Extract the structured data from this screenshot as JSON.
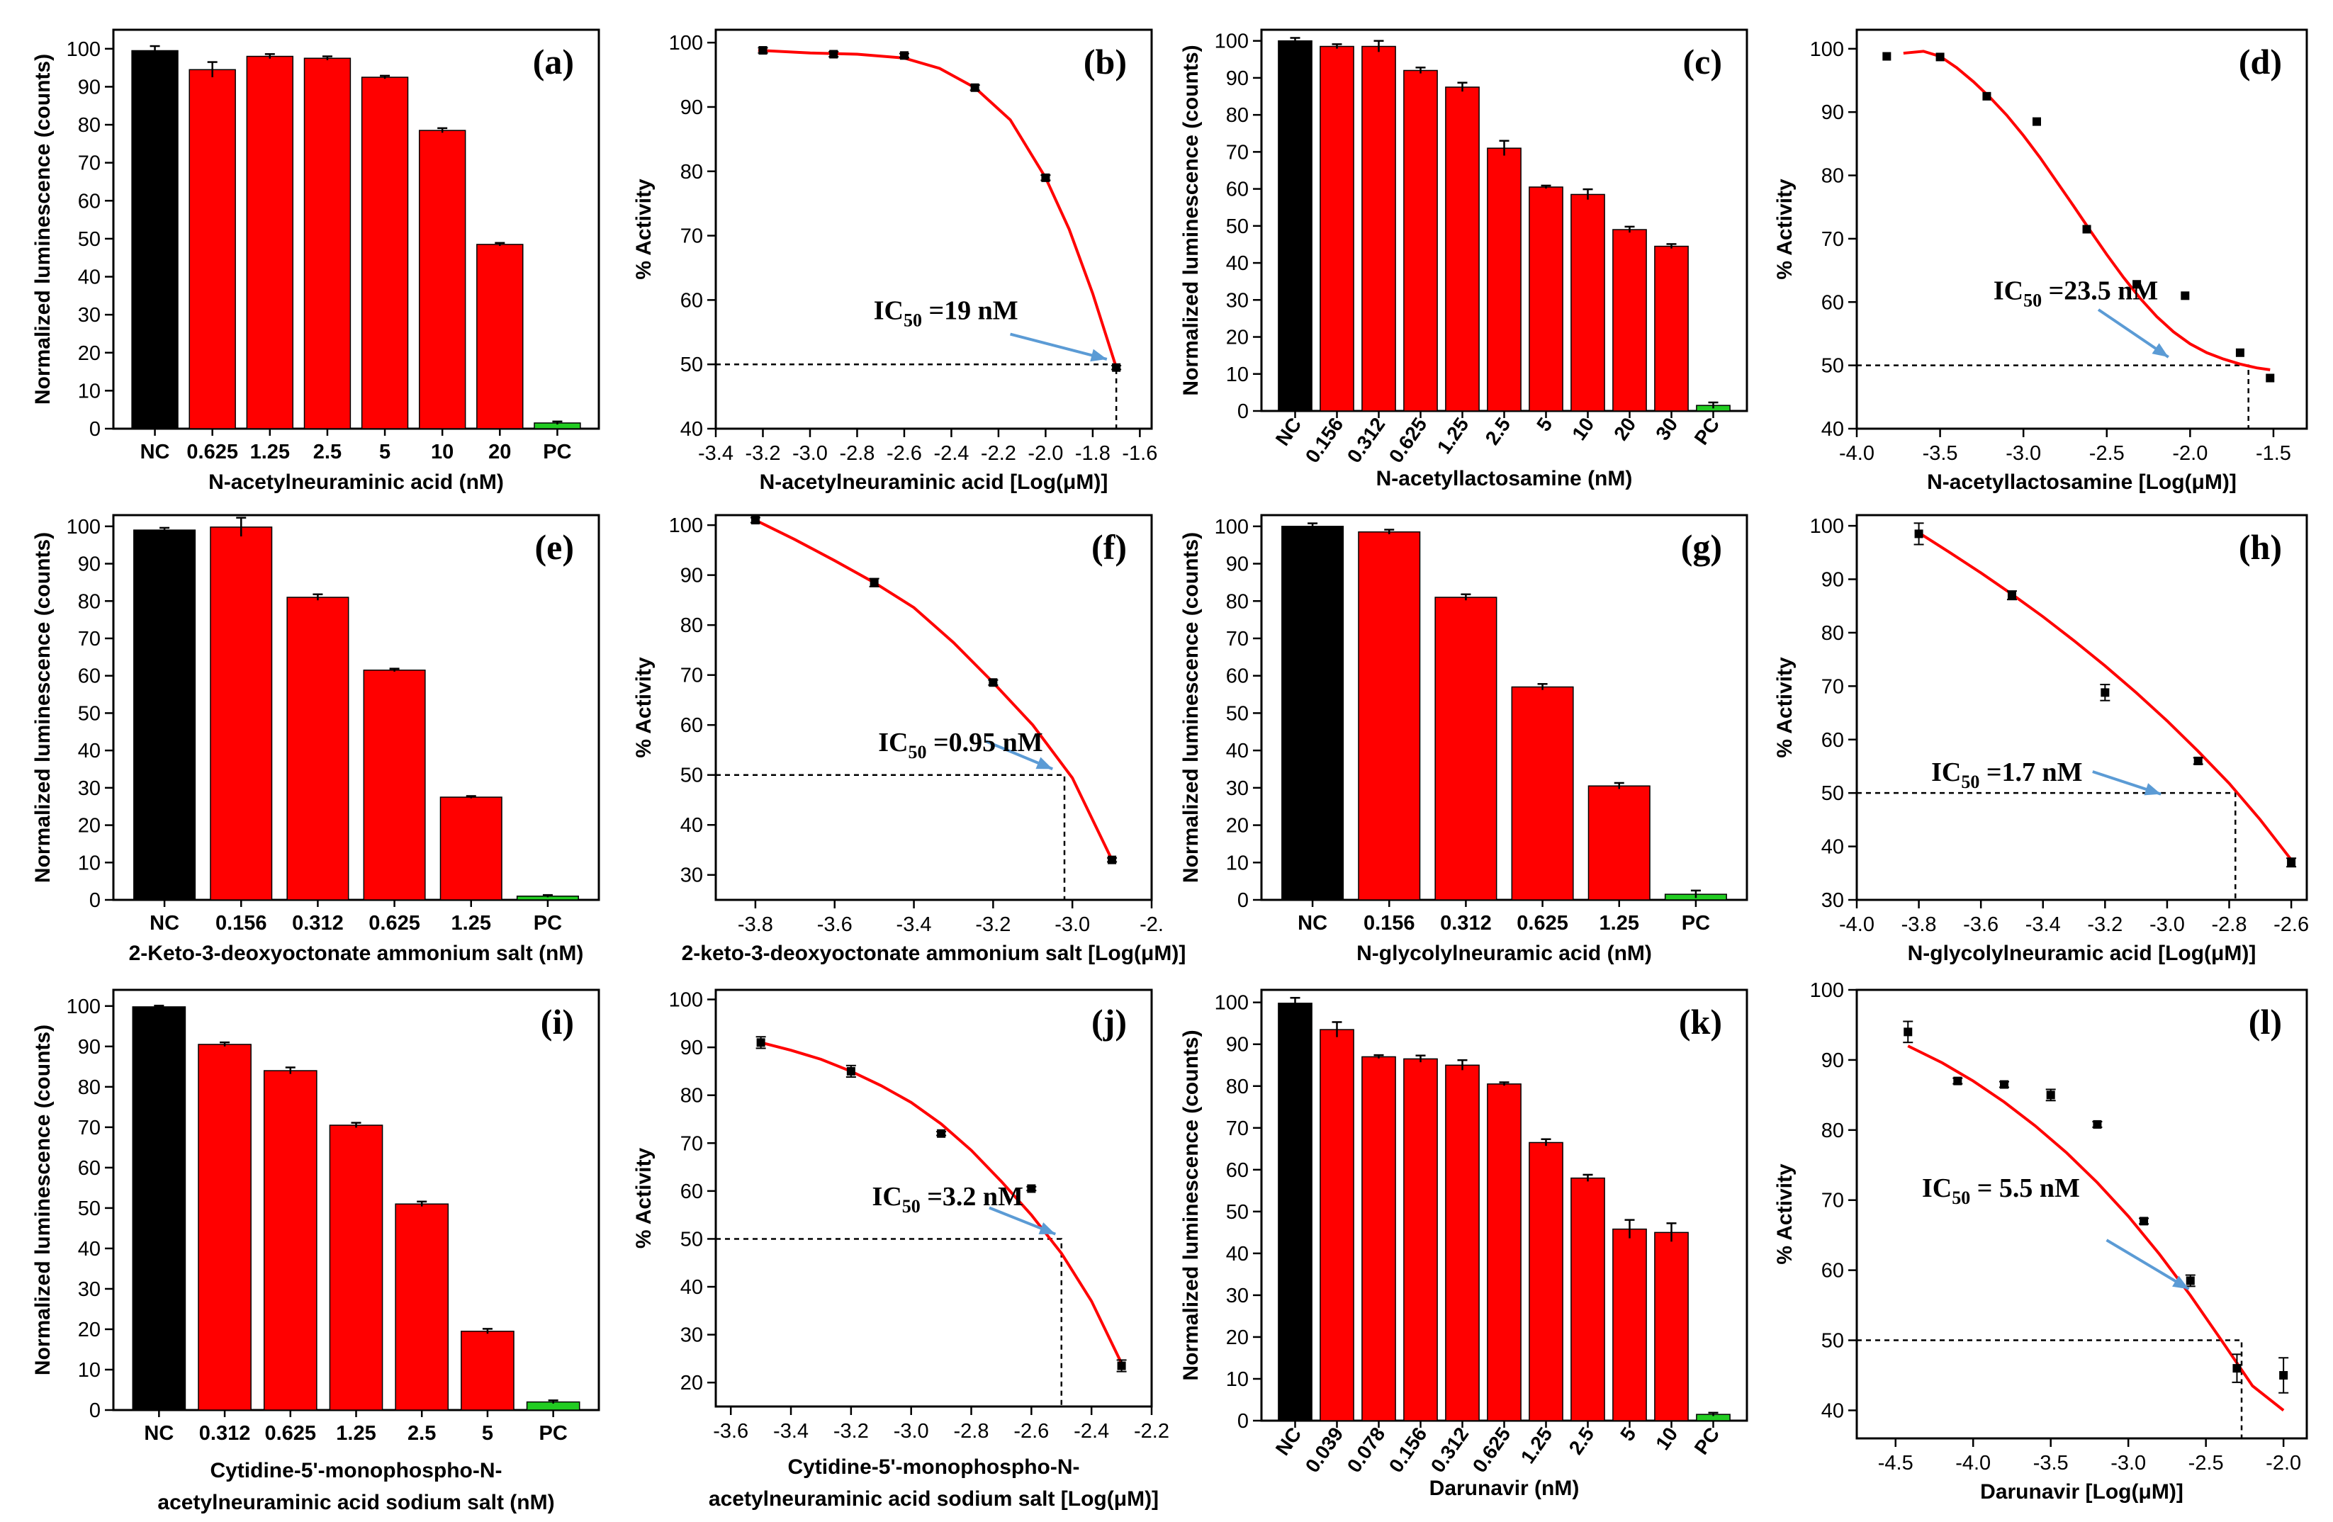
{
  "chart_data": [
    {
      "id": "a",
      "type": "bar",
      "panel_label": "(a)",
      "xlabel": "N-acetylneuraminic acid (nM)",
      "ylabel": "Normalized luminescence (counts)",
      "ylim": [
        0,
        105
      ],
      "yticks": [
        0,
        10,
        20,
        30,
        40,
        50,
        60,
        70,
        80,
        90,
        100
      ],
      "categories": [
        "NC",
        "0.625",
        "1.25",
        "2.5",
        "5",
        "10",
        "20",
        "PC"
      ],
      "values": [
        99.5,
        94.5,
        98,
        97.5,
        92.5,
        78.5,
        48.5,
        1.5
      ],
      "errors": [
        1.2,
        2.0,
        0.6,
        0.5,
        0.4,
        0.6,
        0.4,
        0.4
      ],
      "colors": [
        "#000000",
        "#ff0000",
        "#ff0000",
        "#ff0000",
        "#ff0000",
        "#ff0000",
        "#ff0000",
        "#22cc22"
      ],
      "rotate_ticks": false
    },
    {
      "id": "b",
      "type": "scatter",
      "panel_label": "(b)",
      "xlabel": "N-acetylneuraminic acid [Log(μM)]",
      "ylabel": "% Activity",
      "xlim": [
        -3.4,
        -1.55
      ],
      "ylim": [
        40,
        102
      ],
      "xticks": [
        -3.4,
        -3.2,
        -3.0,
        -2.8,
        -2.6,
        -2.4,
        -2.2,
        -2.0,
        -1.8,
        -1.6
      ],
      "xtick_labels": [
        "-3.4",
        "-3.2",
        "-3.0",
        "-2.8",
        "-2.6",
        "-2.4",
        "-2.2",
        "-2.0",
        "-1.8",
        "-1.6"
      ],
      "yticks": [
        40,
        50,
        60,
        70,
        80,
        90,
        100
      ],
      "points": {
        "x": [
          -3.2,
          -2.9,
          -2.6,
          -2.3,
          -2.0,
          -1.7
        ],
        "y": [
          98.8,
          98.2,
          98,
          93,
          79,
          49.5
        ],
        "err": [
          0.4,
          0.4,
          0.3,
          0.4,
          0.4,
          0.3
        ]
      },
      "fit": {
        "x": [
          -3.22,
          -3.0,
          -2.8,
          -2.6,
          -2.45,
          -2.3,
          -2.15,
          -2.0,
          -1.9,
          -1.8,
          -1.7
        ],
        "y": [
          98.8,
          98.4,
          98.2,
          97.6,
          96,
          93,
          88,
          79,
          71,
          61,
          49.5
        ]
      },
      "ic50": {
        "x": -1.7,
        "y": 50,
        "label_prefix": "IC",
        "label_sub": "50",
        "label_suffix": " =19 nM",
        "label_at": [
          -2.73,
          57
        ],
        "arrow_from": [
          -2.15,
          54.7
        ],
        "arrow_to": [
          -1.74,
          50.8
        ]
      }
    },
    {
      "id": "c",
      "type": "bar",
      "panel_label": "(c)",
      "xlabel": "N-acetyllactosamine (nM)",
      "ylabel": "Normalized luminescence (counts)",
      "ylim": [
        0,
        103
      ],
      "yticks": [
        0,
        10,
        20,
        30,
        40,
        50,
        60,
        70,
        80,
        90,
        100
      ],
      "categories": [
        "NC",
        "0.156",
        "0.312",
        "0.625",
        "1.25",
        "2.5",
        "5",
        "10",
        "20",
        "30",
        "PC"
      ],
      "values": [
        100,
        98.5,
        98.5,
        92,
        87.5,
        71,
        60.5,
        58.5,
        49,
        44.5,
        1.5
      ],
      "errors": [
        0.8,
        0.6,
        1.5,
        0.8,
        1.2,
        2.0,
        0.4,
        1.4,
        0.8,
        0.6,
        0.8
      ],
      "colors": [
        "#000000",
        "#ff0000",
        "#ff0000",
        "#ff0000",
        "#ff0000",
        "#ff0000",
        "#ff0000",
        "#ff0000",
        "#ff0000",
        "#ff0000",
        "#22cc22"
      ],
      "rotate_ticks": true
    },
    {
      "id": "d",
      "type": "scatter",
      "panel_label": "(d)",
      "xlabel": "N-acetyllactosamine [Log(μM)]",
      "ylabel": "% Activity",
      "xlim": [
        -4.0,
        -1.3
      ],
      "ylim": [
        40,
        103
      ],
      "xticks": [
        -4.0,
        -3.5,
        -3.0,
        -2.5,
        -2.0,
        -1.5
      ],
      "xtick_labels": [
        "-4.0",
        "-3.5",
        "-3.0",
        "-2.5",
        "-2.0",
        "-1.5"
      ],
      "yticks": [
        40,
        50,
        60,
        70,
        80,
        90,
        100
      ],
      "points": {
        "x": [
          -3.82,
          -3.5,
          -3.22,
          -2.92,
          -2.62,
          -2.32,
          -2.03,
          -1.7,
          -1.52
        ],
        "y": [
          98.8,
          98.7,
          92.5,
          88.5,
          71.5,
          62.8,
          61,
          52,
          48
        ],
        "err": [
          0,
          0,
          0,
          0,
          0,
          0,
          0,
          0,
          0
        ]
      },
      "fit": {
        "x": [
          -3.72,
          -3.6,
          -3.5,
          -3.4,
          -3.3,
          -3.2,
          -3.1,
          -3.0,
          -2.9,
          -2.8,
          -2.7,
          -2.6,
          -2.5,
          -2.4,
          -2.3,
          -2.2,
          -2.1,
          -2.0,
          -1.9,
          -1.8,
          -1.7,
          -1.6,
          -1.52
        ],
        "y": [
          99.3,
          99.6,
          98.8,
          97,
          94.8,
          92.3,
          89.5,
          86.3,
          82.8,
          79,
          75.2,
          71.3,
          67.5,
          63.9,
          60.6,
          57.7,
          55.3,
          53.4,
          52,
          51,
          50.2,
          49.6,
          49.3
        ]
      },
      "ic50": {
        "x": -1.65,
        "y": 50,
        "label_prefix": "IC",
        "label_sub": "50",
        "label_suffix": " =23.5 nM",
        "label_at": [
          -3.18,
          60.4
        ],
        "arrow_from": [
          -2.55,
          58.8
        ],
        "arrow_to": [
          -2.13,
          51.3
        ]
      }
    },
    {
      "id": "e",
      "type": "bar",
      "panel_label": "(e)",
      "xlabel": "2-Keto-3-deoxyoctonate ammonium salt (nM)",
      "ylabel": "Normalized luminescence (counts)",
      "ylim": [
        0,
        103
      ],
      "yticks": [
        0,
        10,
        20,
        30,
        40,
        50,
        60,
        70,
        80,
        90,
        100
      ],
      "categories": [
        "NC",
        "0.156",
        "0.312",
        "0.625",
        "1.25",
        "PC"
      ],
      "values": [
        99,
        99.8,
        81,
        61.5,
        27.5,
        1
      ],
      "errors": [
        0.6,
        2.5,
        0.8,
        0.4,
        0.3,
        0.3
      ],
      "colors": [
        "#000000",
        "#ff0000",
        "#ff0000",
        "#ff0000",
        "#ff0000",
        "#22cc22"
      ],
      "rotate_ticks": false
    },
    {
      "id": "f",
      "type": "scatter",
      "panel_label": "(f)",
      "xlabel": "2-keto-3-deoxyoctonate ammonium salt [Log(μM)]",
      "ylabel": "% Activity",
      "xlim": [
        -3.9,
        -2.8
      ],
      "ylim": [
        25,
        102
      ],
      "xticks": [
        -3.8,
        -3.6,
        -3.4,
        -3.2,
        -3.0,
        -2.8
      ],
      "xtick_labels": [
        "-3.8",
        "-3.6",
        "-3.4",
        "-3.2",
        "-3.0",
        "-2."
      ],
      "yticks": [
        30,
        40,
        50,
        60,
        70,
        80,
        90,
        100
      ],
      "points": {
        "x": [
          -3.8,
          -3.5,
          -3.2,
          -2.9
        ],
        "y": [
          101,
          88.5,
          68.5,
          33
        ],
        "err": [
          0.5,
          0.8,
          0.5,
          0.4
        ]
      },
      "fit": {
        "x": [
          -3.8,
          -3.7,
          -3.6,
          -3.5,
          -3.4,
          -3.3,
          -3.2,
          -3.1,
          -3.0,
          -2.9
        ],
        "y": [
          101,
          97.1,
          92.9,
          88.5,
          83.5,
          76.5,
          68.5,
          60,
          49.4,
          33
        ]
      },
      "ic50": {
        "x": -3.02,
        "y": 50,
        "label_prefix": "IC",
        "label_sub": "50",
        "label_suffix": " =0.95 nM",
        "label_at": [
          -3.49,
          54.8
        ],
        "arrow_from": [
          -3.22,
          56.8
        ],
        "arrow_to": [
          -3.05,
          51.2
        ]
      }
    },
    {
      "id": "g",
      "type": "bar",
      "panel_label": "(g)",
      "xlabel": "N-glycolylneuramic acid (nM)",
      "ylabel": "Normalized luminescence (counts)",
      "ylim": [
        0,
        103
      ],
      "yticks": [
        0,
        10,
        20,
        30,
        40,
        50,
        60,
        70,
        80,
        90,
        100
      ],
      "categories": [
        "NC",
        "0.156",
        "0.312",
        "0.625",
        "1.25",
        "PC"
      ],
      "values": [
        100,
        98.5,
        81,
        57,
        30.5,
        1.5
      ],
      "errors": [
        0.8,
        0.6,
        0.8,
        0.8,
        0.8,
        1.0
      ],
      "colors": [
        "#000000",
        "#ff0000",
        "#ff0000",
        "#ff0000",
        "#ff0000",
        "#22cc22"
      ],
      "rotate_ticks": false
    },
    {
      "id": "h",
      "type": "scatter",
      "panel_label": "(h)",
      "xlabel": "N-glycolylneuramic acid [Log(μM)]",
      "ylabel": "% Activity",
      "xlim": [
        -4.0,
        -2.55
      ],
      "ylim": [
        30,
        102
      ],
      "xticks": [
        -4.0,
        -3.8,
        -3.6,
        -3.4,
        -3.2,
        -3.0,
        -2.8,
        -2.6
      ],
      "xtick_labels": [
        "-4.0",
        "-3.8",
        "-3.6",
        "-3.4",
        "-3.2",
        "-3.0",
        "-2.8",
        "-2.6"
      ],
      "yticks": [
        30,
        40,
        50,
        60,
        70,
        80,
        90,
        100
      ],
      "points": {
        "x": [
          -3.8,
          -3.5,
          -3.2,
          -2.9,
          -2.6
        ],
        "y": [
          98.5,
          87,
          68.8,
          56,
          37
        ],
        "err": [
          2.0,
          0.8,
          1.5,
          0.6,
          0.8
        ]
      },
      "fit": {
        "x": [
          -3.8,
          -3.7,
          -3.6,
          -3.5,
          -3.4,
          -3.3,
          -3.2,
          -3.1,
          -3.0,
          -2.9,
          -2.8,
          -2.7,
          -2.6
        ],
        "y": [
          98.7,
          95,
          91.2,
          87.2,
          83,
          78.5,
          73.8,
          68.8,
          63.5,
          57.8,
          51.8,
          45,
          37.5
        ]
      },
      "ic50": {
        "x": -2.78,
        "y": 50,
        "label_prefix": "IC",
        "label_sub": "50",
        "label_suffix": " =1.7 nM",
        "label_at": [
          -3.76,
          52.3
        ],
        "arrow_from": [
          -3.24,
          54
        ],
        "arrow_to": [
          -3.02,
          49.8
        ]
      }
    },
    {
      "id": "i",
      "type": "bar",
      "panel_label": "(i)",
      "xlabel": "Cytidine-5'-monophospho-N-",
      "xlabel2": "acetylneuraminic acid sodium salt (nM)",
      "ylabel": "Normalized luminescence (counts)",
      "ylim": [
        0,
        104
      ],
      "yticks": [
        0,
        10,
        20,
        30,
        40,
        50,
        60,
        70,
        80,
        90,
        100
      ],
      "categories": [
        "NC",
        "0.312",
        "0.625",
        "1.25",
        "2.5",
        "5",
        "PC"
      ],
      "values": [
        99.8,
        90.5,
        84,
        70.5,
        51,
        19.5,
        2
      ],
      "errors": [
        0.3,
        0.5,
        0.8,
        0.6,
        0.6,
        0.6,
        0.4
      ],
      "colors": [
        "#000000",
        "#ff0000",
        "#ff0000",
        "#ff0000",
        "#ff0000",
        "#ff0000",
        "#22cc22"
      ],
      "rotate_ticks": false
    },
    {
      "id": "j",
      "type": "scatter",
      "panel_label": "(j)",
      "xlabel": "Cytidine-5'-monophospho-N-",
      "xlabel2": "acetylneuraminic acid sodium salt [Log(μM)]",
      "ylabel": "% Activity",
      "xlim": [
        -3.65,
        -2.2
      ],
      "ylim": [
        15,
        102
      ],
      "xticks": [
        -3.6,
        -3.4,
        -3.2,
        -3.0,
        -2.8,
        -2.6,
        -2.4,
        -2.2
      ],
      "xtick_labels": [
        "-3.6",
        "-3.4",
        "-3.2",
        "-3.0",
        "-2.8",
        "-2.6",
        "-2.4",
        "-2.2"
      ],
      "yticks": [
        20,
        30,
        40,
        50,
        60,
        70,
        80,
        90,
        100
      ],
      "points": {
        "x": [
          -3.5,
          -3.2,
          -2.9,
          -2.6,
          -2.3
        ],
        "y": [
          91,
          85,
          72,
          60.5,
          23.5
        ],
        "err": [
          1.2,
          1.2,
          0.4,
          0.4,
          1.2
        ]
      },
      "fit": {
        "x": [
          -3.5,
          -3.4,
          -3.3,
          -3.2,
          -3.1,
          -3.0,
          -2.9,
          -2.8,
          -2.7,
          -2.6,
          -2.5,
          -2.4,
          -2.3
        ],
        "y": [
          91,
          89.4,
          87.5,
          85,
          82,
          78.5,
          74,
          68.5,
          62,
          55,
          47,
          37,
          24
        ]
      },
      "ic50": {
        "x": -2.5,
        "y": 50,
        "label_prefix": "IC",
        "label_sub": "50",
        "label_suffix": " =3.2 nM",
        "label_at": [
          -3.13,
          57
        ],
        "arrow_from": [
          -2.74,
          56.5
        ],
        "arrow_to": [
          -2.52,
          51
        ]
      }
    },
    {
      "id": "k",
      "type": "bar",
      "panel_label": "(k)",
      "xlabel": "Darunavir (nM)",
      "ylabel": "Normalized luminescence (counts)",
      "ylim": [
        0,
        103
      ],
      "yticks": [
        0,
        10,
        20,
        30,
        40,
        50,
        60,
        70,
        80,
        90,
        100
      ],
      "categories": [
        "NC",
        "0.039",
        "0.078",
        "0.156",
        "0.312",
        "0.625",
        "1.25",
        "2.5",
        "5",
        "10",
        "PC"
      ],
      "values": [
        99.8,
        93.5,
        87,
        86.5,
        85,
        80.5,
        66.5,
        58,
        45.8,
        45,
        1.5
      ],
      "errors": [
        1.3,
        1.8,
        0.4,
        0.8,
        1.2,
        0.4,
        0.8,
        0.8,
        2.2,
        2.2,
        0.4
      ],
      "colors": [
        "#000000",
        "#ff0000",
        "#ff0000",
        "#ff0000",
        "#ff0000",
        "#ff0000",
        "#ff0000",
        "#ff0000",
        "#ff0000",
        "#ff0000",
        "#22cc22"
      ],
      "rotate_ticks": true
    },
    {
      "id": "l",
      "type": "scatter",
      "panel_label": "(l)",
      "xlabel": "Darunavir [Log(μM)]",
      "ylabel": "% Activity",
      "xlim": [
        -4.75,
        -1.85
      ],
      "ylim": [
        36,
        100
      ],
      "xticks": [
        -4.5,
        -4.0,
        -3.5,
        -3.0,
        -2.5,
        -2.0
      ],
      "xtick_labels": [
        "-4.5",
        "-4.0",
        "-3.5",
        "-3.0",
        "-2.5",
        "-2.0"
      ],
      "yticks": [
        40,
        50,
        60,
        70,
        80,
        90,
        100
      ],
      "points": {
        "x": [
          -4.42,
          -4.1,
          -3.8,
          -3.5,
          -3.2,
          -2.9,
          -2.6,
          -2.3,
          -2.0
        ],
        "y": [
          94,
          87,
          86.5,
          85,
          80.8,
          67,
          58.5,
          46,
          45
        ],
        "err": [
          1.5,
          0.4,
          0.4,
          0.8,
          0.4,
          0.4,
          0.8,
          2.0,
          2.5
        ]
      },
      "fit": {
        "x": [
          -4.42,
          -4.2,
          -4.0,
          -3.8,
          -3.6,
          -3.4,
          -3.2,
          -3.0,
          -2.8,
          -2.6,
          -2.4,
          -2.2,
          -2.0
        ],
        "y": [
          92,
          89.6,
          87,
          84,
          80.6,
          76.8,
          72.5,
          67.7,
          62.3,
          56.4,
          50,
          43.5,
          40
        ]
      },
      "ic50": {
        "x": -2.27,
        "y": 50,
        "label_prefix": "IC",
        "label_sub": "50",
        "label_suffix": " = 5.5 nM",
        "label_at": [
          -4.33,
          70.5
        ],
        "arrow_from": [
          -3.14,
          64.3
        ],
        "arrow_to": [
          -2.61,
          57.3
        ]
      }
    }
  ]
}
